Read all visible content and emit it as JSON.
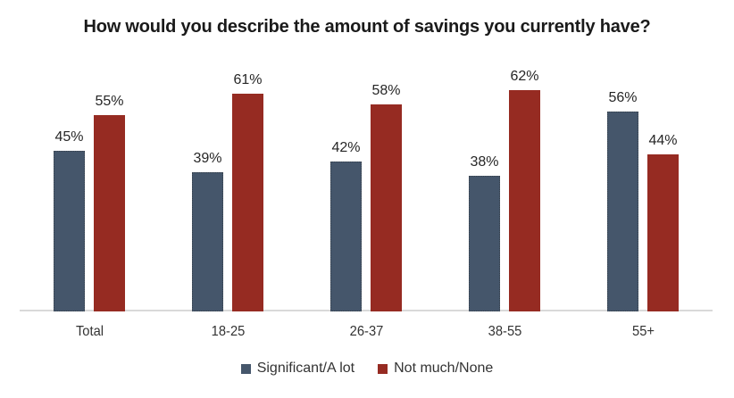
{
  "title": "How would you describe the amount of savings you currently have?",
  "colors": {
    "series_significant": "#45566B",
    "series_not_much": "#962B22",
    "axis_line": "#D9D9D9",
    "text": "#262626"
  },
  "chart_data": {
    "type": "bar",
    "title": "How would you describe the amount of savings you currently have?",
    "categories": [
      "Total",
      "18-25",
      "26-37",
      "38-55",
      "55+"
    ],
    "series": [
      {
        "name": "Significant/A lot",
        "color": "#45566B",
        "values": [
          45,
          39,
          42,
          38,
          56
        ]
      },
      {
        "name": "Not much/None",
        "color": "#962B22",
        "values": [
          55,
          61,
          58,
          62,
          44
        ]
      }
    ],
    "value_suffix": "%",
    "data_labels": true,
    "ylim": [
      0,
      70
    ],
    "grid": false,
    "y_axis_visible": false,
    "legend_position": "bottom"
  }
}
